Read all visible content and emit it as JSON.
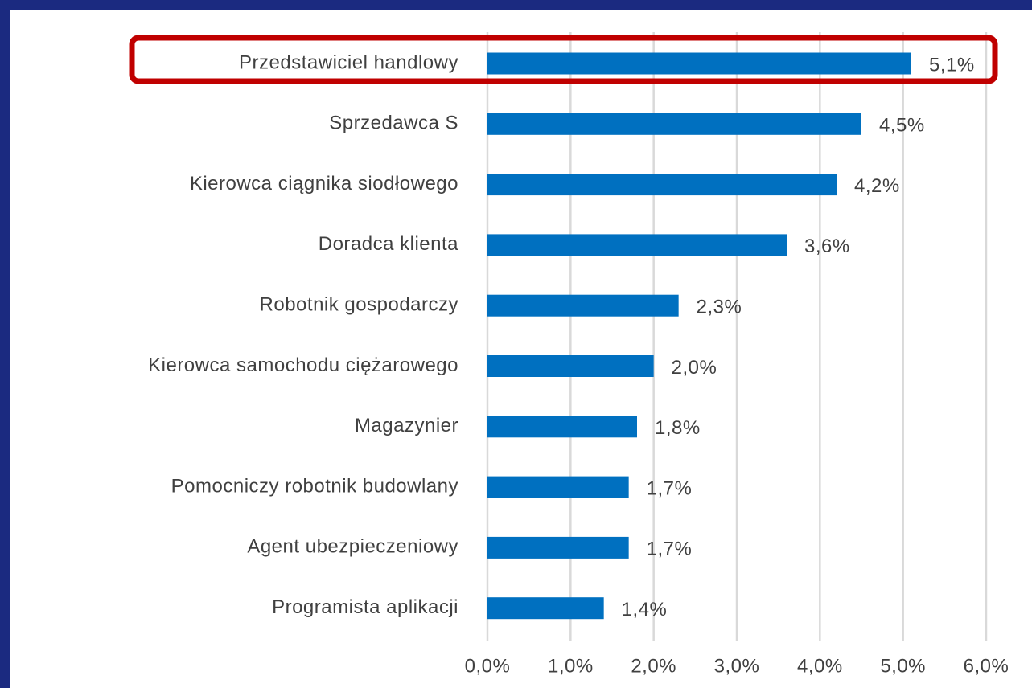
{
  "chart_data": {
    "type": "barh",
    "categories": [
      "Przedstawiciel handlowy",
      "Sprzedawca S",
      "Kierowca ciągnika siodłowego",
      "Doradca klienta",
      "Robotnik gospodarczy",
      "Kierowca samochodu ciężarowego",
      "Magazynier",
      "Pomocniczy robotnik budowlany",
      "Agent ubezpieczeniowy",
      "Programista aplikacji"
    ],
    "values": [
      5.1,
      4.5,
      4.2,
      3.6,
      2.3,
      2.0,
      1.8,
      1.7,
      1.7,
      1.4
    ],
    "value_labels": [
      "5,1%",
      "4,5%",
      "4,2%",
      "3,6%",
      "2,3%",
      "2,0%",
      "1,8%",
      "1,7%",
      "1,7%",
      "1,4%"
    ],
    "color": "#0070c0",
    "xlim": [
      0,
      6
    ],
    "xticks": [
      {
        "value": 0,
        "label": "0,0%"
      },
      {
        "value": 1,
        "label": "1,0%"
      },
      {
        "value": 2,
        "label": "2,0%"
      },
      {
        "value": 3,
        "label": "3,0%"
      },
      {
        "value": 4,
        "label": "4,0%"
      },
      {
        "value": 5,
        "label": "5,0%"
      },
      {
        "value": 6,
        "label": "6,0%"
      }
    ],
    "grid": true
  }
}
